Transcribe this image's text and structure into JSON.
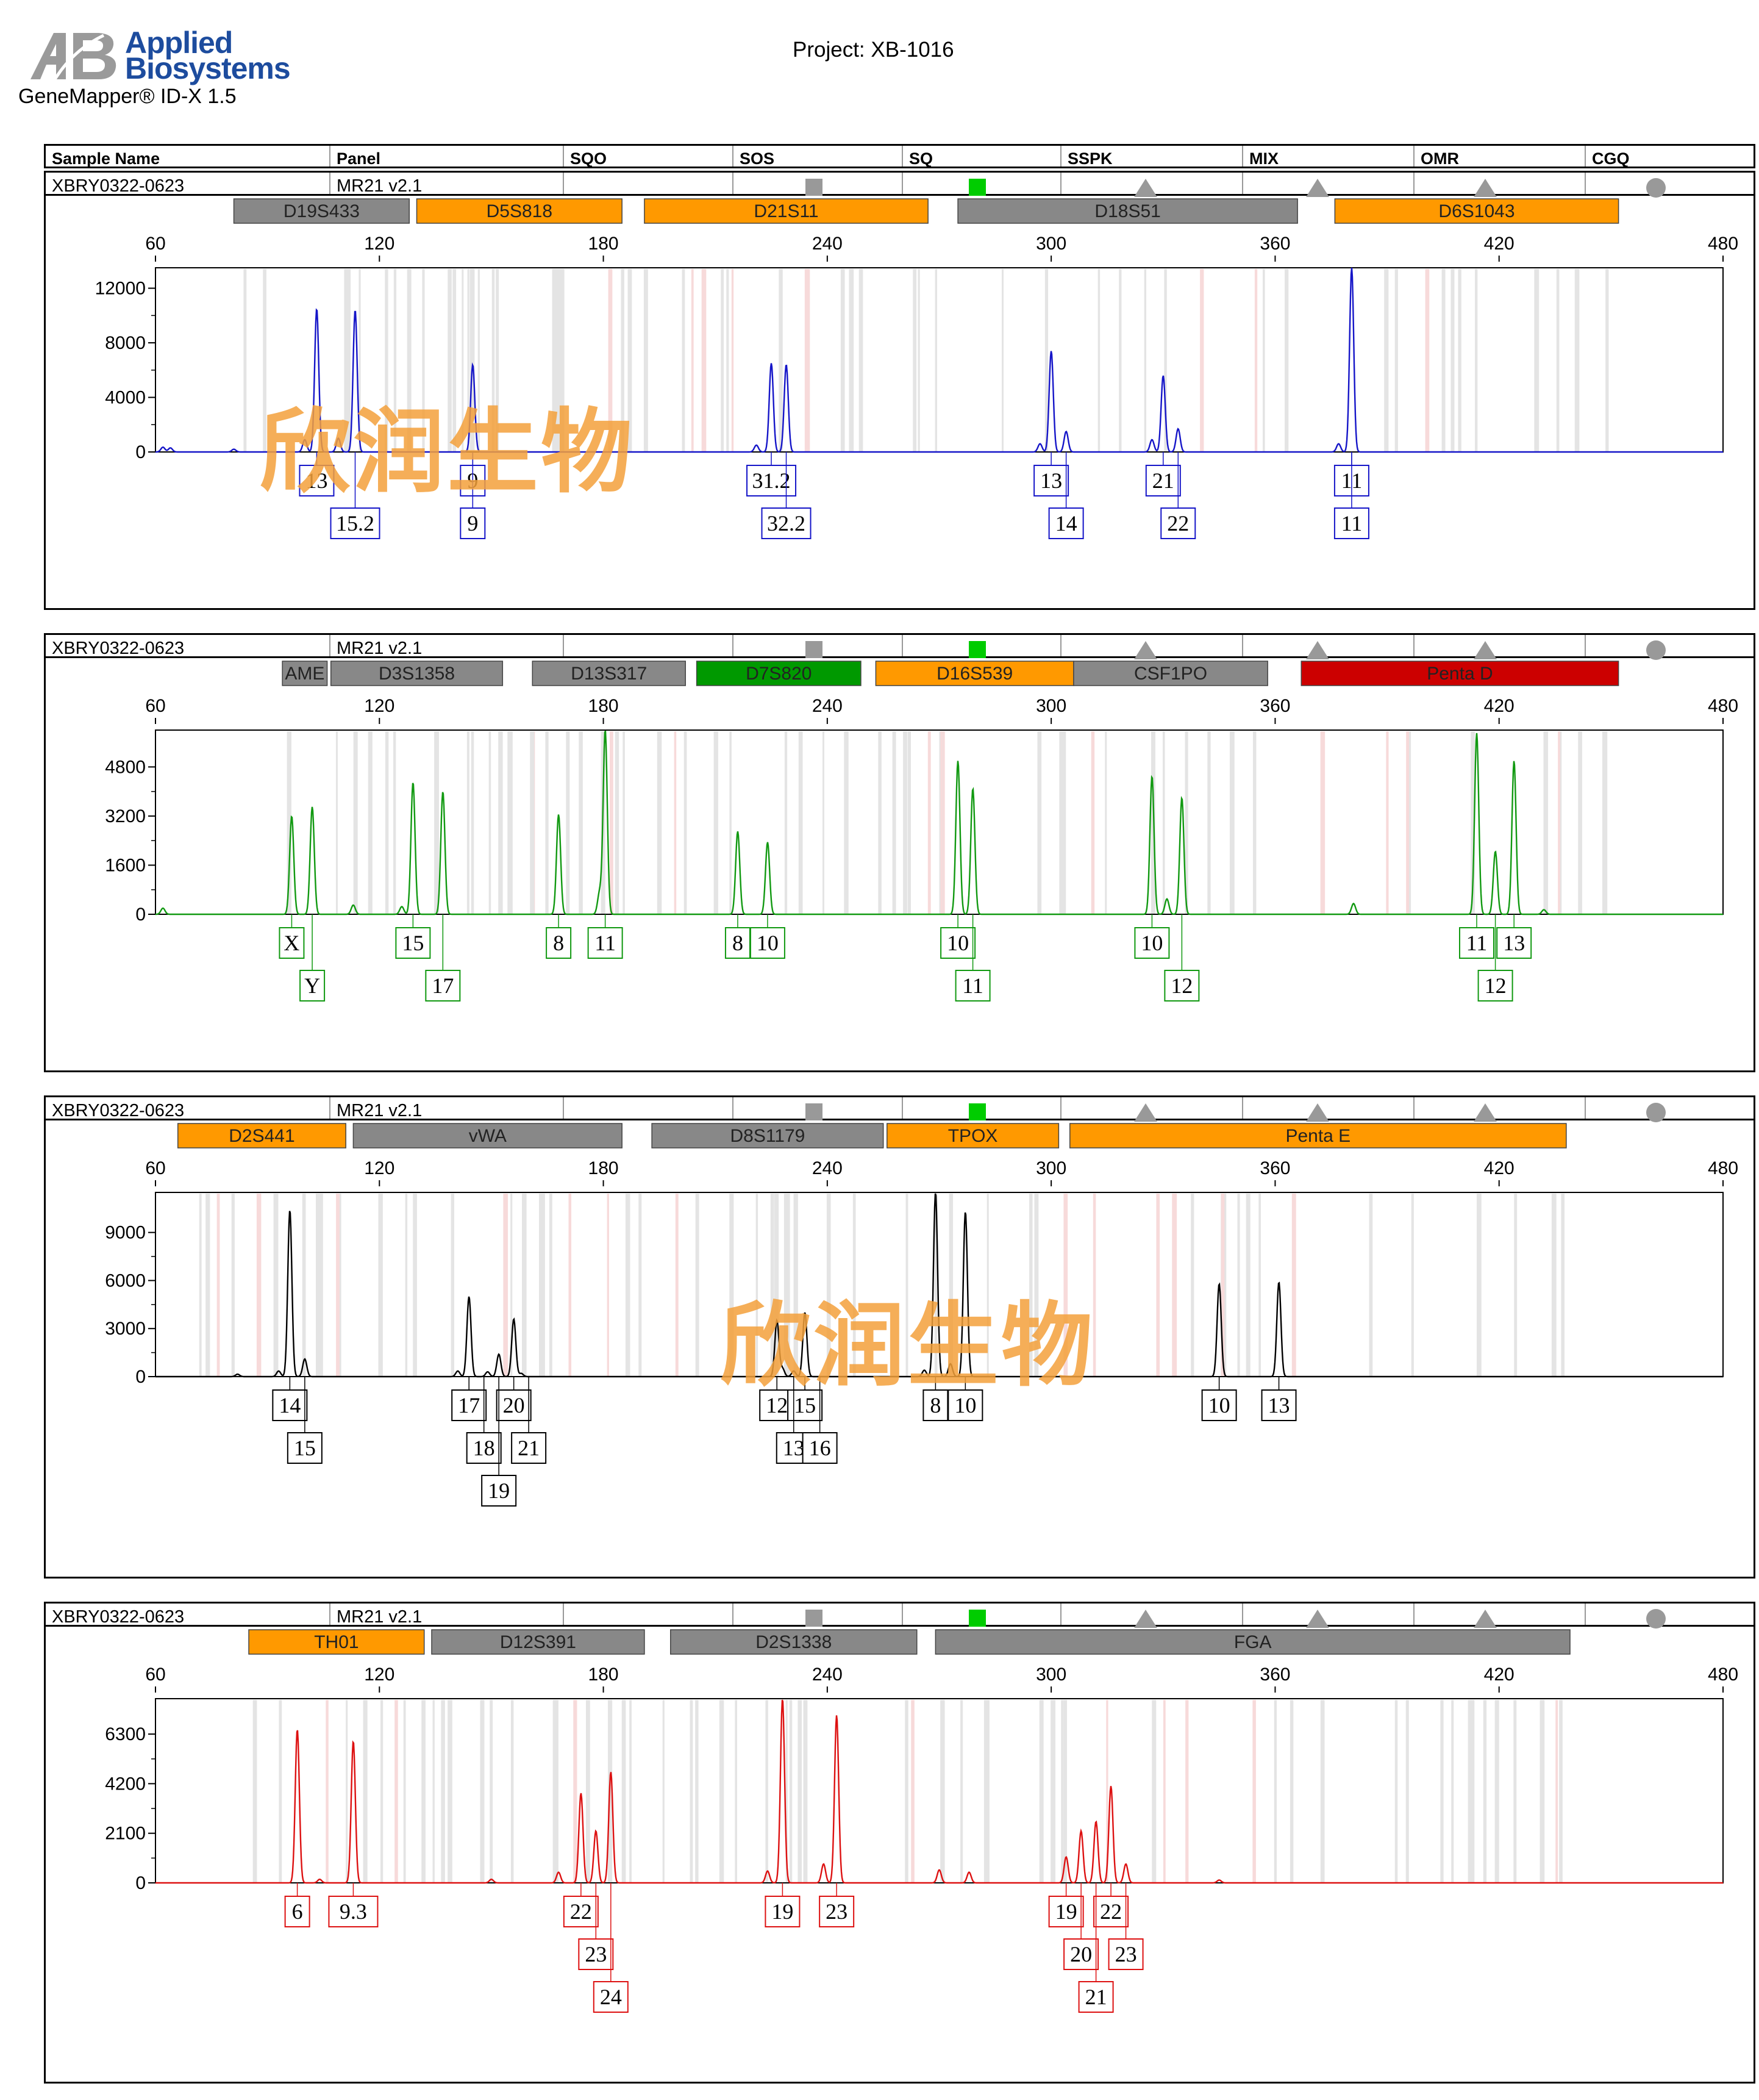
{
  "header": {
    "logo_text_line1": "Applied",
    "logo_text_line2": "Biosystems",
    "software": "GeneMapper® ID-X  1.5",
    "project": "Project: XB-1016"
  },
  "columns": [
    "Sample Name",
    "Panel",
    "SQO",
    "SOS",
    "SQ",
    "SSPK",
    "MIX",
    "OMR",
    "CGQ"
  ],
  "quality_flags": [
    {
      "column": "SOS",
      "shape": "square",
      "color": "#999999"
    },
    {
      "column": "SQ",
      "shape": "square",
      "color": "#00cc00"
    },
    {
      "column": "SSPK",
      "shape": "triangle",
      "color": "#999999"
    },
    {
      "column": "MIX",
      "shape": "triangle",
      "color": "#999999"
    },
    {
      "column": "OMR",
      "shape": "triangle",
      "color": "#999999"
    },
    {
      "column": "CGQ",
      "shape": "circle",
      "color": "#999999"
    }
  ],
  "colors": {
    "blue": "#1515c8",
    "green": "#119911",
    "black": "#000000",
    "red": "#dd1111",
    "marker_gray": "#888888",
    "marker_orange": "#ff9900",
    "marker_green": "#009900",
    "marker_red": "#cc0000"
  },
  "watermarks": [
    "欣润生物",
    "欣润生物"
  ],
  "chart_data": [
    {
      "type": "line",
      "sample": "XBRY0322-0623",
      "panel": "MR21  v2.1",
      "color": "blue",
      "xlim": [
        60,
        480
      ],
      "x_ticks": [
        60,
        120,
        180,
        240,
        300,
        360,
        420,
        480
      ],
      "ylim": [
        0,
        13500
      ],
      "y_ticks": [
        0,
        4000,
        8000,
        12000
      ],
      "markers": [
        {
          "name": "D19S433",
          "start": 81,
          "end": 128,
          "color": "gray"
        },
        {
          "name": "D5S818",
          "start": 130,
          "end": 185,
          "color": "orange"
        },
        {
          "name": "D21S11",
          "start": 191,
          "end": 267,
          "color": "orange"
        },
        {
          "name": "D18S51",
          "start": 275,
          "end": 366,
          "color": "gray"
        },
        {
          "name": "D6S1043",
          "start": 376,
          "end": 452,
          "color": "orange"
        }
      ],
      "peaks": [
        {
          "x": 103.2,
          "y": 10500
        },
        {
          "x": 113.5,
          "y": 10400
        },
        {
          "x": 145,
          "y": 6400
        },
        {
          "x": 225,
          "y": 6500
        },
        {
          "x": 229,
          "y": 6400
        },
        {
          "x": 300,
          "y": 7400
        },
        {
          "x": 304,
          "y": 1500
        },
        {
          "x": 330,
          "y": 5600
        },
        {
          "x": 334,
          "y": 1700
        },
        {
          "x": 380.5,
          "y": 13500
        },
        {
          "x": 109,
          "y": 1000
        },
        {
          "x": 100,
          "y": 900
        },
        {
          "x": 221,
          "y": 500
        },
        {
          "x": 297,
          "y": 600
        },
        {
          "x": 327,
          "y": 900
        },
        {
          "x": 377,
          "y": 600
        },
        {
          "x": 62,
          "y": 350
        },
        {
          "x": 64,
          "y": 300
        },
        {
          "x": 81,
          "y": 200
        }
      ],
      "alleles": [
        {
          "x": 103.2,
          "label": "13",
          "row": 0
        },
        {
          "x": 113.5,
          "label": "15.2",
          "row": 1
        },
        {
          "x": 145,
          "label": "9",
          "row": 0
        },
        {
          "x": 145,
          "label": "9",
          "row": 1
        },
        {
          "x": 225,
          "label": "31.2",
          "row": 0
        },
        {
          "x": 229,
          "label": "32.2",
          "row": 1
        },
        {
          "x": 300,
          "label": "13",
          "row": 0
        },
        {
          "x": 304,
          "label": "14",
          "row": 1
        },
        {
          "x": 330,
          "label": "21",
          "row": 0
        },
        {
          "x": 334,
          "label": "22",
          "row": 1
        },
        {
          "x": 380.5,
          "label": "11",
          "row": 0
        },
        {
          "x": 380.5,
          "label": "11",
          "row": 1
        }
      ]
    },
    {
      "type": "line",
      "sample": "XBRY0322-0623",
      "panel": "MR21  v2.1",
      "color": "green",
      "xlim": [
        60,
        480
      ],
      "x_ticks": [
        60,
        120,
        180,
        240,
        300,
        360,
        420,
        480
      ],
      "ylim": [
        0,
        6000
      ],
      "y_ticks": [
        0,
        1600,
        3200,
        4800
      ],
      "markers": [
        {
          "name": "AME",
          "start": 94,
          "end": 106,
          "color": "gray"
        },
        {
          "name": "D3S1358",
          "start": 107,
          "end": 153,
          "color": "gray"
        },
        {
          "name": "D13S317",
          "start": 161,
          "end": 202,
          "color": "gray"
        },
        {
          "name": "D7S820",
          "start": 205,
          "end": 249,
          "color": "green"
        },
        {
          "name": "D16S539",
          "start": 253,
          "end": 306,
          "color": "orange"
        },
        {
          "name": "CSF1PO",
          "start": 306,
          "end": 358,
          "color": "gray"
        },
        {
          "name": "Penta D",
          "start": 367,
          "end": 452,
          "color": "red"
        }
      ],
      "peaks": [
        {
          "x": 96.5,
          "y": 3200
        },
        {
          "x": 102,
          "y": 3500
        },
        {
          "x": 129,
          "y": 4300
        },
        {
          "x": 137,
          "y": 4000
        },
        {
          "x": 168,
          "y": 3250
        },
        {
          "x": 180.5,
          "y": 6000
        },
        {
          "x": 216,
          "y": 2700
        },
        {
          "x": 224,
          "y": 2350
        },
        {
          "x": 275,
          "y": 5000
        },
        {
          "x": 279,
          "y": 4100
        },
        {
          "x": 327,
          "y": 4500
        },
        {
          "x": 335,
          "y": 3800
        },
        {
          "x": 414,
          "y": 5900
        },
        {
          "x": 419,
          "y": 2050
        },
        {
          "x": 424,
          "y": 5000
        },
        {
          "x": 62,
          "y": 200
        },
        {
          "x": 113,
          "y": 300
        },
        {
          "x": 126,
          "y": 250
        },
        {
          "x": 179,
          "y": 700
        },
        {
          "x": 331,
          "y": 500
        },
        {
          "x": 381,
          "y": 350
        },
        {
          "x": 432,
          "y": 150
        }
      ],
      "alleles": [
        {
          "x": 96.5,
          "label": "X",
          "row": 0
        },
        {
          "x": 102,
          "label": "Y",
          "row": 1
        },
        {
          "x": 129,
          "label": "15",
          "row": 0
        },
        {
          "x": 137,
          "label": "17",
          "row": 1
        },
        {
          "x": 168,
          "label": "8",
          "row": 0
        },
        {
          "x": 180.5,
          "label": "11",
          "row": 0
        },
        {
          "x": 216,
          "label": "8",
          "row": 0
        },
        {
          "x": 224,
          "label": "10",
          "row": 0
        },
        {
          "x": 275,
          "label": "10",
          "row": 0
        },
        {
          "x": 279,
          "label": "11",
          "row": 1
        },
        {
          "x": 327,
          "label": "10",
          "row": 0
        },
        {
          "x": 335,
          "label": "12",
          "row": 1
        },
        {
          "x": 414,
          "label": "11",
          "row": 0
        },
        {
          "x": 424,
          "label": "13",
          "row": 0
        },
        {
          "x": 419,
          "label": "12",
          "row": 1
        }
      ]
    },
    {
      "type": "line",
      "sample": "XBRY0322-0623",
      "panel": "MR21  v2.1",
      "color": "black",
      "xlim": [
        60,
        480
      ],
      "x_ticks": [
        60,
        120,
        180,
        240,
        300,
        360,
        420,
        480
      ],
      "ylim": [
        0,
        11500
      ],
      "y_ticks": [
        0,
        3000,
        6000,
        9000
      ],
      "markers": [
        {
          "name": "D2S441",
          "start": 66,
          "end": 111,
          "color": "orange"
        },
        {
          "name": "vWA",
          "start": 113,
          "end": 185,
          "color": "gray"
        },
        {
          "name": "D8S1179",
          "start": 193,
          "end": 255,
          "color": "gray"
        },
        {
          "name": "TPOX",
          "start": 256,
          "end": 302,
          "color": "orange"
        },
        {
          "name": "Penta E",
          "start": 305,
          "end": 438,
          "color": "orange"
        }
      ],
      "peaks": [
        {
          "x": 96,
          "y": 10400
        },
        {
          "x": 100,
          "y": 1100
        },
        {
          "x": 144,
          "y": 5000
        },
        {
          "x": 152,
          "y": 1400
        },
        {
          "x": 156,
          "y": 3600
        },
        {
          "x": 226.5,
          "y": 3500
        },
        {
          "x": 234,
          "y": 4000
        },
        {
          "x": 269,
          "y": 11500
        },
        {
          "x": 277,
          "y": 10300
        },
        {
          "x": 345,
          "y": 5800
        },
        {
          "x": 361,
          "y": 5900
        },
        {
          "x": 93,
          "y": 350
        },
        {
          "x": 141,
          "y": 350
        },
        {
          "x": 149,
          "y": 300
        },
        {
          "x": 228,
          "y": 500
        },
        {
          "x": 231,
          "y": 350
        },
        {
          "x": 266,
          "y": 400
        },
        {
          "x": 273,
          "y": 800
        },
        {
          "x": 158,
          "y": 200
        },
        {
          "x": 82,
          "y": 150
        }
      ],
      "alleles": [
        {
          "x": 96,
          "label": "14",
          "row": 0
        },
        {
          "x": 100,
          "label": "15",
          "row": 1
        },
        {
          "x": 144,
          "label": "17",
          "row": 0
        },
        {
          "x": 156,
          "label": "20",
          "row": 0
        },
        {
          "x": 148,
          "label": "18",
          "row": 1
        },
        {
          "x": 160,
          "label": "21",
          "row": 1
        },
        {
          "x": 152,
          "label": "19",
          "row": 2
        },
        {
          "x": 226.5,
          "label": "12",
          "row": 0
        },
        {
          "x": 234,
          "label": "15",
          "row": 0
        },
        {
          "x": 231,
          "label": "13",
          "row": 1
        },
        {
          "x": 238,
          "label": "16",
          "row": 1
        },
        {
          "x": 269,
          "label": "8",
          "row": 0
        },
        {
          "x": 277,
          "label": "10",
          "row": 0
        },
        {
          "x": 345,
          "label": "10",
          "row": 0
        },
        {
          "x": 361,
          "label": "13",
          "row": 0
        }
      ]
    },
    {
      "type": "line",
      "sample": "XBRY0322-0623",
      "panel": "MR21  v2.1",
      "color": "red",
      "xlim": [
        60,
        480
      ],
      "x_ticks": [
        60,
        120,
        180,
        240,
        300,
        360,
        420,
        480
      ],
      "ylim": [
        0,
        7800
      ],
      "y_ticks": [
        0,
        2100,
        4200,
        6300
      ],
      "markers": [
        {
          "name": "TH01",
          "start": 85,
          "end": 132,
          "color": "orange"
        },
        {
          "name": "D12S391",
          "start": 134,
          "end": 191,
          "color": "gray"
        },
        {
          "name": "D2S1338",
          "start": 198,
          "end": 264,
          "color": "gray"
        },
        {
          "name": "FGA",
          "start": 269,
          "end": 439,
          "color": "gray"
        }
      ],
      "peaks": [
        {
          "x": 98,
          "y": 6500
        },
        {
          "x": 113,
          "y": 6000
        },
        {
          "x": 174,
          "y": 3800
        },
        {
          "x": 178,
          "y": 2200
        },
        {
          "x": 182,
          "y": 4700
        },
        {
          "x": 228,
          "y": 7800
        },
        {
          "x": 242.5,
          "y": 7100
        },
        {
          "x": 304,
          "y": 1100
        },
        {
          "x": 308,
          "y": 2200
        },
        {
          "x": 312,
          "y": 2600
        },
        {
          "x": 316,
          "y": 4100
        },
        {
          "x": 320,
          "y": 800
        },
        {
          "x": 168,
          "y": 450
        },
        {
          "x": 224,
          "y": 500
        },
        {
          "x": 239,
          "y": 800
        },
        {
          "x": 270,
          "y": 550
        },
        {
          "x": 278,
          "y": 450
        },
        {
          "x": 104,
          "y": 150
        },
        {
          "x": 150,
          "y": 150
        },
        {
          "x": 345,
          "y": 120
        }
      ],
      "alleles": [
        {
          "x": 98,
          "label": "6",
          "row": 0
        },
        {
          "x": 113,
          "label": "9.3",
          "row": 0
        },
        {
          "x": 174,
          "label": "22",
          "row": 0
        },
        {
          "x": 178,
          "label": "23",
          "row": 1
        },
        {
          "x": 182,
          "label": "24",
          "row": 2
        },
        {
          "x": 228,
          "label": "19",
          "row": 0
        },
        {
          "x": 242.5,
          "label": "23",
          "row": 0
        },
        {
          "x": 304,
          "label": "19",
          "row": 0
        },
        {
          "x": 316,
          "label": "22",
          "row": 0
        },
        {
          "x": 308,
          "label": "20",
          "row": 1
        },
        {
          "x": 320,
          "label": "23",
          "row": 1
        },
        {
          "x": 312,
          "label": "21",
          "row": 2
        }
      ]
    }
  ]
}
